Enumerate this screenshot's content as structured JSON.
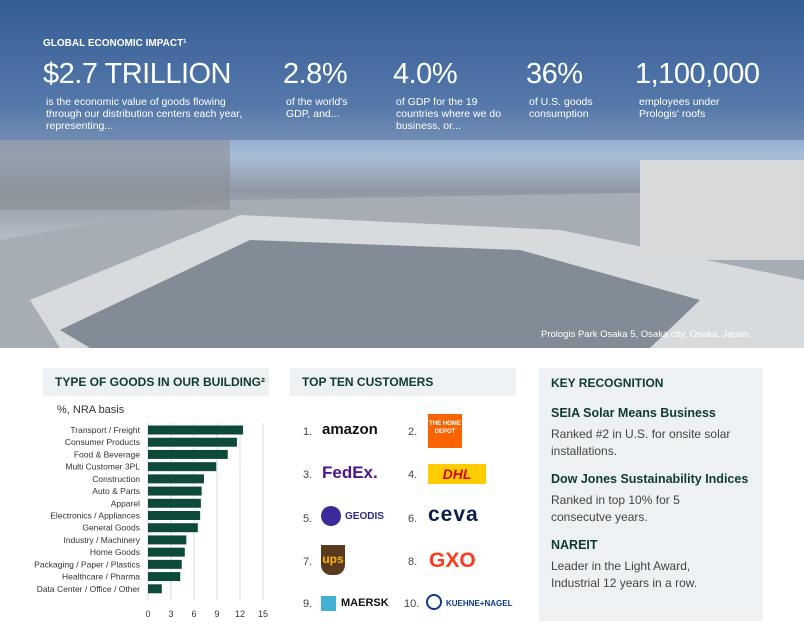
{
  "hero": {
    "heading": "GLOBAL ECONOMIC IMPACT¹",
    "stats": [
      {
        "value": "$2.7 TRILLION",
        "text": "is the economic value of goods flowing through our distribution centers each year, representing..."
      },
      {
        "value": "2.8%",
        "text": "of the world's GDP, and..."
      },
      {
        "value": "4.0%",
        "text": "of GDP for the 19 countries where we do business, or..."
      },
      {
        "value": "36%",
        "text": "of U.S. goods consumption"
      },
      {
        "value": "1,100,000",
        "text": "employees under Prologis' roofs"
      }
    ],
    "caption": "Prologis Park Osaka 5, Osaka city, Osaka, Japan."
  },
  "chart_data": {
    "type": "bar",
    "orientation": "horizontal",
    "title": "TYPE OF GOODS IN OUR BUILDING²",
    "subtitle": "%, NRA basis",
    "categories": [
      "Transport / Freight",
      "Consumer Products",
      "Food & Beverage",
      "Multi Customer 3PL",
      "Construction",
      "Auto & Parts",
      "Apparel",
      "Electronics / Appliances",
      "General Goods",
      "Industry / Machinery",
      "Home Goods",
      "Packaging / Paper / Plastics",
      "Healthcare / Pharma",
      "Data Center / Office / Other"
    ],
    "values": [
      12.4,
      11.6,
      10.4,
      8.9,
      7.3,
      7.0,
      6.9,
      6.8,
      6.5,
      5.0,
      4.8,
      4.4,
      4.2,
      1.8
    ],
    "color": "#0e4a3b",
    "xlim": [
      0,
      15
    ],
    "xticks": [
      0,
      3,
      6,
      9,
      12,
      15
    ],
    "grid": true
  },
  "customers": {
    "title": "TOP TEN CUSTOMERS",
    "items": [
      {
        "rank": "1.",
        "name": "amazon"
      },
      {
        "rank": "2.",
        "name": "THE HOME DEPOT"
      },
      {
        "rank": "3.",
        "name": "FedEx."
      },
      {
        "rank": "4.",
        "name": "DHL"
      },
      {
        "rank": "5.",
        "name": "GEODIS"
      },
      {
        "rank": "6.",
        "name": "ceva"
      },
      {
        "rank": "7.",
        "name": "ups"
      },
      {
        "rank": "8.",
        "name": "GXO"
      },
      {
        "rank": "9.",
        "name": "MAERSK"
      },
      {
        "rank": "10.",
        "name": "KUEHNE+NAGEL"
      }
    ]
  },
  "recognition": {
    "title": "KEY RECOGNITION",
    "items": [
      {
        "title": "SEIA Solar Means Business",
        "text": "Ranked #2 in U.S. for onsite solar installations."
      },
      {
        "title": "Dow Jones Sustainability Indices",
        "text": "Ranked in top 10% for 5 consecutve years."
      },
      {
        "title": "NAREIT",
        "text": "Leader in the Light Award, Industrial 12 years in a row."
      }
    ]
  }
}
